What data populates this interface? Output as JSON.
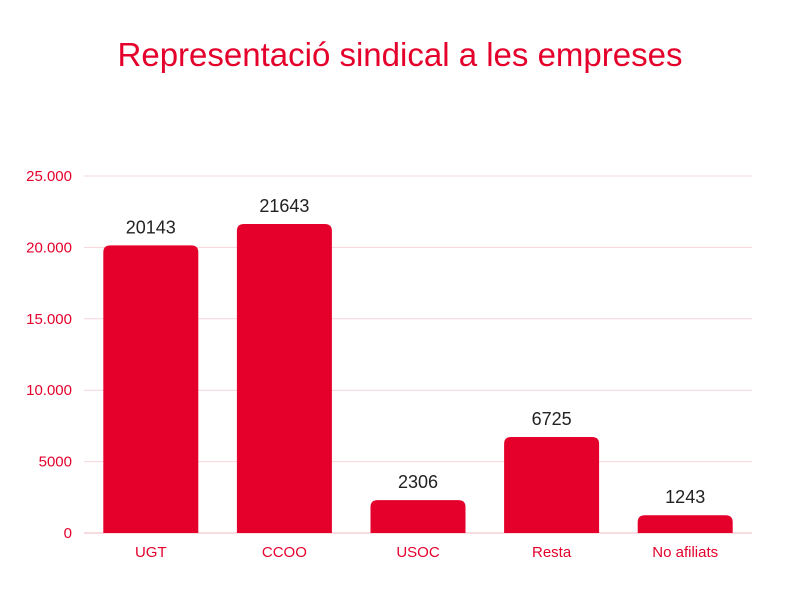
{
  "chart_data": {
    "type": "bar",
    "title": "Representació sindical a les empreses",
    "xlabel": "",
    "ylabel": "",
    "categories": [
      "UGT",
      "CCOO",
      "USOC",
      "Resta",
      "No afiliats"
    ],
    "values": [
      20143,
      21643,
      2306,
      6725,
      1243
    ],
    "data_labels": [
      "20143",
      "21643",
      "2306",
      "6725",
      "1243"
    ],
    "ylim": [
      0,
      25000
    ],
    "yticks": [
      0,
      5000,
      10000,
      15000,
      20000,
      25000
    ],
    "ytick_labels": [
      "0",
      "5000",
      "10.000",
      "15.000",
      "20.000",
      "25.000"
    ],
    "grid": true,
    "legend": "none",
    "colors": {
      "bar": "#e4002b",
      "text": "#e4002b",
      "gridline": "#f6d4da",
      "baseline": "#f2b8c2"
    }
  }
}
